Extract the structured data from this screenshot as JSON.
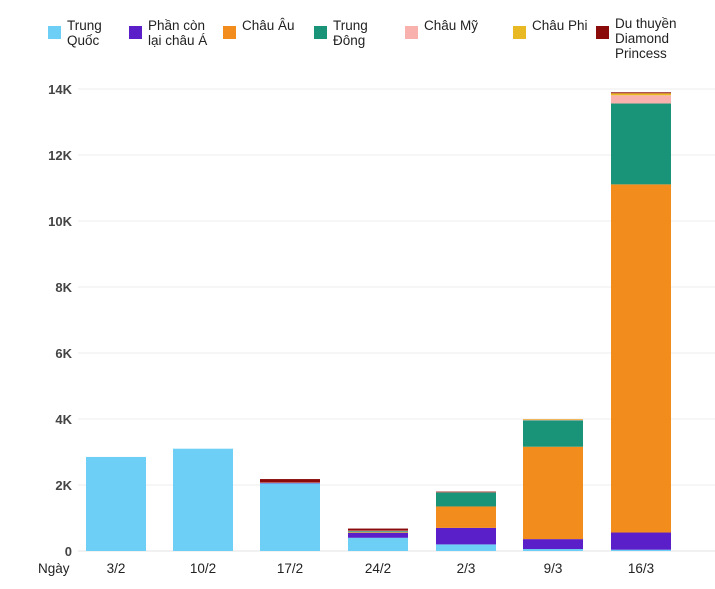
{
  "chart_data": {
    "type": "bar",
    "stacked": true,
    "title": "",
    "xlabel": "Ngày",
    "ylabel": "",
    "ylim": [
      0,
      14000
    ],
    "y_ticks": [
      {
        "value": 0,
        "label": "0"
      },
      {
        "value": 2000,
        "label": "2K"
      },
      {
        "value": 4000,
        "label": "4K"
      },
      {
        "value": 6000,
        "label": "6K"
      },
      {
        "value": 8000,
        "label": "8K"
      },
      {
        "value": 10000,
        "label": "10K"
      },
      {
        "value": 12000,
        "label": "12K"
      },
      {
        "value": 14000,
        "label": "14K"
      }
    ],
    "grid": true,
    "legend_position": "top",
    "categories": [
      "3/2",
      "10/2",
      "17/2",
      "24/2",
      "2/3",
      "9/3",
      "16/3"
    ],
    "series": [
      {
        "name": "Trung Quốc",
        "label_lines": [
          "Trung",
          "Quốc"
        ],
        "color": "#6ecff6",
        "values": [
          2850,
          3100,
          2050,
          400,
          200,
          60,
          40
        ]
      },
      {
        "name": "Phần còn lại châu Á",
        "label_lines": [
          "Phần còn",
          "lại châu Á"
        ],
        "color": "#5a1fc9",
        "values": [
          0,
          0,
          30,
          150,
          500,
          300,
          520
        ]
      },
      {
        "name": "Châu Âu",
        "label_lines": [
          "Châu Âu"
        ],
        "color": "#f28c1c",
        "values": [
          0,
          0,
          10,
          20,
          650,
          2800,
          10550
        ]
      },
      {
        "name": "Trung Đông",
        "label_lines": [
          "Trung",
          "Đông"
        ],
        "color": "#1a9478",
        "values": [
          0,
          0,
          0,
          30,
          430,
          800,
          2450
        ]
      },
      {
        "name": "Châu Mỹ",
        "label_lines": [
          "Châu Mỹ"
        ],
        "color": "#f9b1ad",
        "values": [
          0,
          0,
          0,
          20,
          10,
          30,
          250
        ]
      },
      {
        "name": "Châu Phi",
        "label_lines": [
          "Châu Phi"
        ],
        "color": "#e8b923",
        "values": [
          0,
          0,
          0,
          0,
          0,
          10,
          60
        ]
      },
      {
        "name": "Du thuyền Diamond Princess",
        "label_lines": [
          "Du thuyền",
          "Diamond",
          "Princess"
        ],
        "color": "#8b0a0a",
        "values": [
          0,
          0,
          90,
          60,
          10,
          0,
          30
        ]
      }
    ]
  }
}
